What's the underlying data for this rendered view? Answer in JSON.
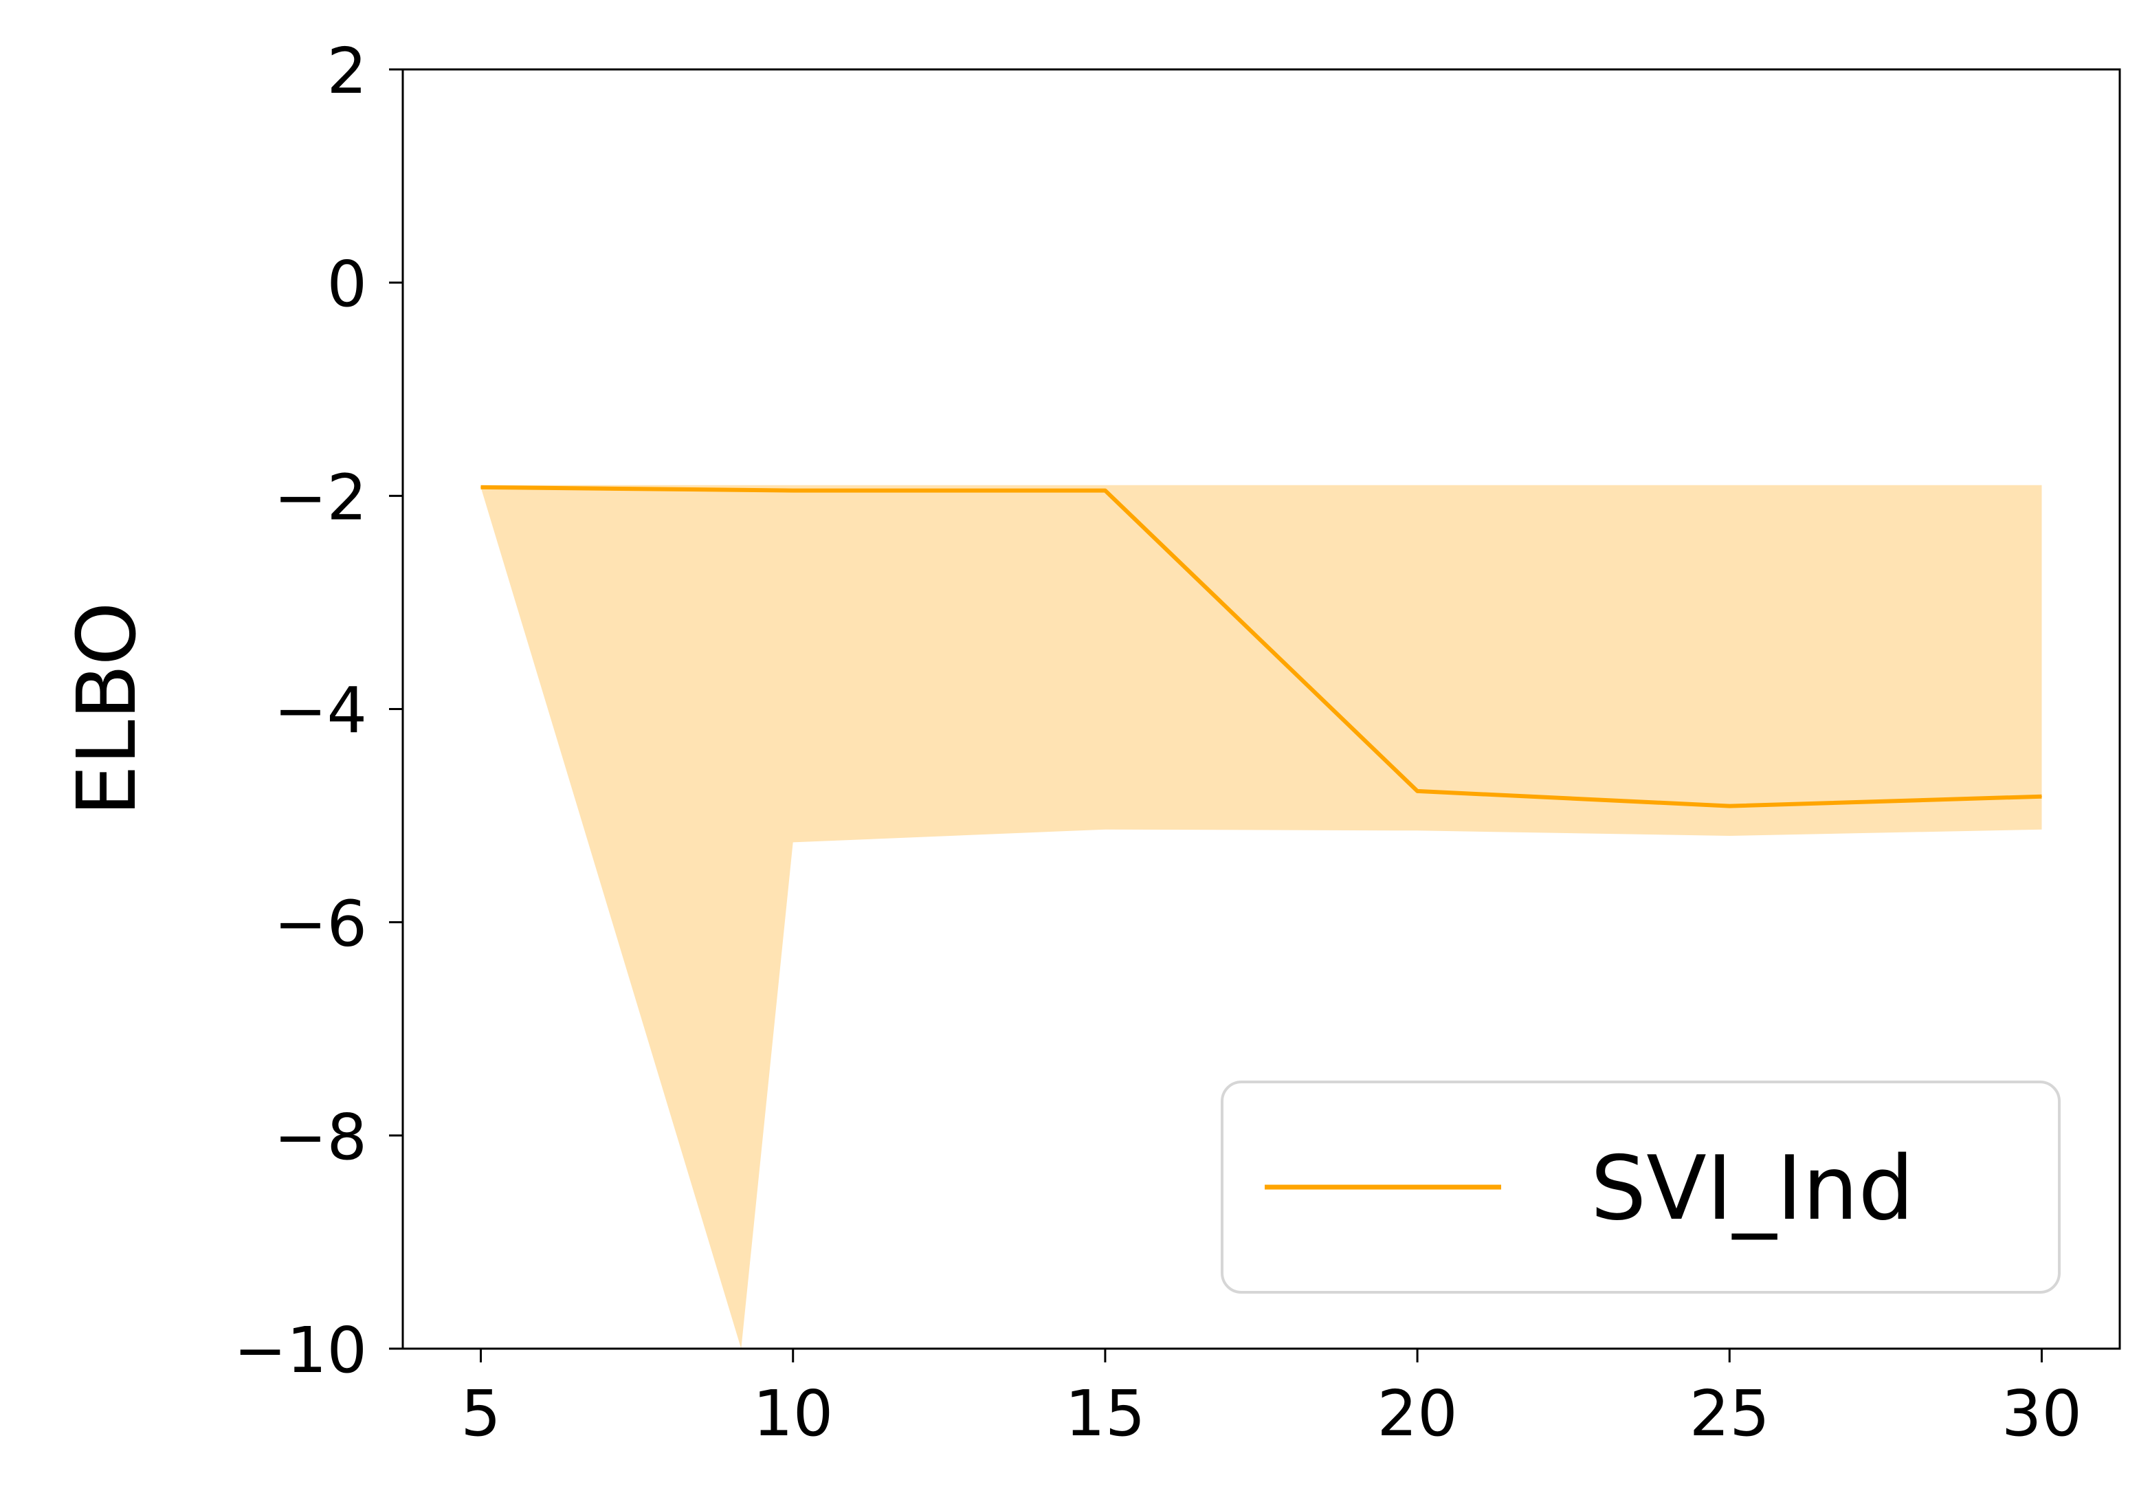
{
  "chart_data": {
    "type": "line",
    "title": "",
    "xlabel": "",
    "ylabel": "ELBO",
    "x": [
      5,
      10,
      15,
      20,
      25,
      30
    ],
    "xticks": [
      5,
      10,
      15,
      20,
      25,
      30
    ],
    "xtick_labels": [
      "5",
      "10",
      "15",
      "20",
      "25",
      "30"
    ],
    "yticks": [
      2,
      0,
      -2,
      -4,
      -6,
      -8,
      -10
    ],
    "ytick_labels": [
      "2",
      "0",
      "−2",
      "−4",
      "−6",
      "−8",
      "−10"
    ],
    "xlim": [
      3.75,
      31.25
    ],
    "ylim": [
      -10,
      2
    ],
    "grid": false,
    "legend_position": "lower-right",
    "series": [
      {
        "name": "SVI_Ind",
        "color": "#FFA500",
        "values": [
          -1.92,
          -1.95,
          -1.95,
          -4.77,
          -4.91,
          -4.82
        ],
        "band": {
          "color": "#FFE3B3",
          "x": [
            5,
            5,
            9.17,
            10,
            15,
            20,
            25,
            30,
            30,
            25,
            20,
            15,
            10,
            5
          ],
          "y": [
            -10,
            -1.92,
            -10,
            -5.25,
            -5.13,
            -5.14,
            -5.19,
            -5.13,
            -1.9,
            -1.9,
            -1.9,
            -1.9,
            -1.9,
            -1.9
          ]
        }
      }
    ]
  }
}
